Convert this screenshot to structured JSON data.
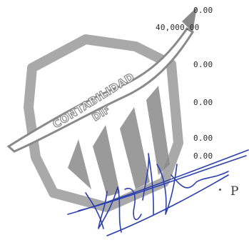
{
  "amounts": [
    "0.00",
    "40,000.00",
    "0.00",
    "0.00",
    "0.00",
    "0.00"
  ],
  "stamp": {
    "text_line1": "CONTABILIDAD",
    "text_line2": "DIF",
    "color": "#8c8c8c"
  },
  "page_label": "P",
  "signature_color": "#2b3fb0"
}
